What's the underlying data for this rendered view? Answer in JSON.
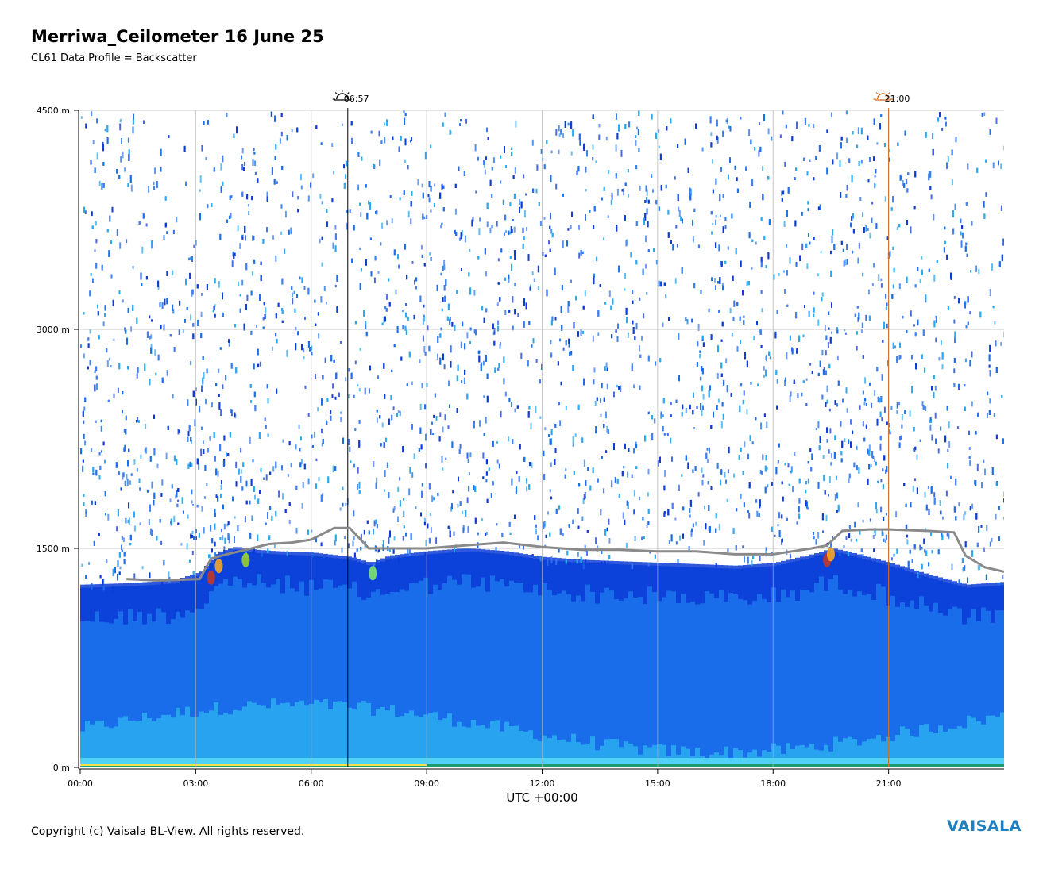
{
  "header": {
    "title": "Merriwa_Ceilometer 16 June 25",
    "subtitle": "CL61 Data Profile = Backscatter"
  },
  "footer": {
    "copyright": "Copyright (c) Vaisala BL-View. All rights reserved.",
    "logo_text": "VAISALA"
  },
  "colors": {
    "deep_blue": "#0b3bd6",
    "mid_blue": "#1a6dea",
    "cyan": "#2aa8f0",
    "light_cyan": "#4fd2f5",
    "noise_white": "#ffffff",
    "cloud_line": "#8a8a8a",
    "sunrise_marker": "#000000",
    "sunset_marker": "#d2691e",
    "logo": "#1f7fc1"
  },
  "chart_data": {
    "type": "heatmap",
    "title": "Merriwa_Ceilometer 16 June 25",
    "subtitle": "CL61 Data Profile = Backscatter",
    "xlabel": "UTC +00:00",
    "ylabel": "",
    "xlim": [
      0,
      24
    ],
    "ylim": [
      0,
      4500
    ],
    "x_ticks": [
      "00:00",
      "03:00",
      "06:00",
      "09:00",
      "12:00",
      "15:00",
      "18:00",
      "21:00"
    ],
    "x_tick_values": [
      0,
      3,
      6,
      9,
      12,
      15,
      18,
      21
    ],
    "y_ticks": [
      "0 m",
      "1500 m",
      "3000 m",
      "4500 m"
    ],
    "y_tick_values": [
      0,
      1500,
      3000,
      4500
    ],
    "grid": true,
    "events": [
      {
        "label": "06:57",
        "hour": 6.95,
        "icon": "sunrise-icon"
      },
      {
        "label": "21:00",
        "hour": 21.0,
        "icon": "sunset-icon"
      }
    ],
    "boundary_layer_top": {
      "x": [
        0,
        1.2,
        2.4,
        3.1,
        3.5,
        4.0,
        4.5,
        5.0,
        6.0,
        7.0,
        7.5,
        8.0,
        9.0,
        10.0,
        11.0,
        12.0,
        13.0,
        14.0,
        15.0,
        16.0,
        17.0,
        18.0,
        19.0,
        19.5,
        20.0,
        21.0,
        22.0,
        23.0,
        24.0
      ],
      "y": [
        1230,
        1240,
        1260,
        1320,
        1450,
        1490,
        1470,
        1460,
        1450,
        1420,
        1380,
        1430,
        1460,
        1480,
        1460,
        1420,
        1400,
        1390,
        1380,
        1370,
        1360,
        1380,
        1440,
        1480,
        1450,
        1380,
        1300,
        1230,
        1250
      ]
    },
    "cloud_base_height": {
      "x": [
        1.2,
        2.0,
        3.1,
        3.4,
        3.8,
        4.3,
        4.9,
        5.5,
        6.0,
        6.6,
        7.0,
        7.5,
        8.0,
        9.0,
        10.0,
        11.0,
        12.0,
        13.0,
        14.0,
        15.0,
        16.0,
        17.0,
        18.0,
        19.0,
        19.4,
        19.8,
        20.5,
        21.0,
        22.0,
        22.7,
        23.0,
        23.5,
        24.0
      ],
      "y": [
        1290,
        1280,
        1290,
        1430,
        1460,
        1490,
        1530,
        1540,
        1560,
        1640,
        1640,
        1500,
        1500,
        1500,
        1520,
        1540,
        1510,
        1490,
        1490,
        1480,
        1480,
        1460,
        1460,
        1500,
        1520,
        1620,
        1630,
        1630,
        1620,
        1610,
        1450,
        1370,
        1340
      ]
    }
  }
}
